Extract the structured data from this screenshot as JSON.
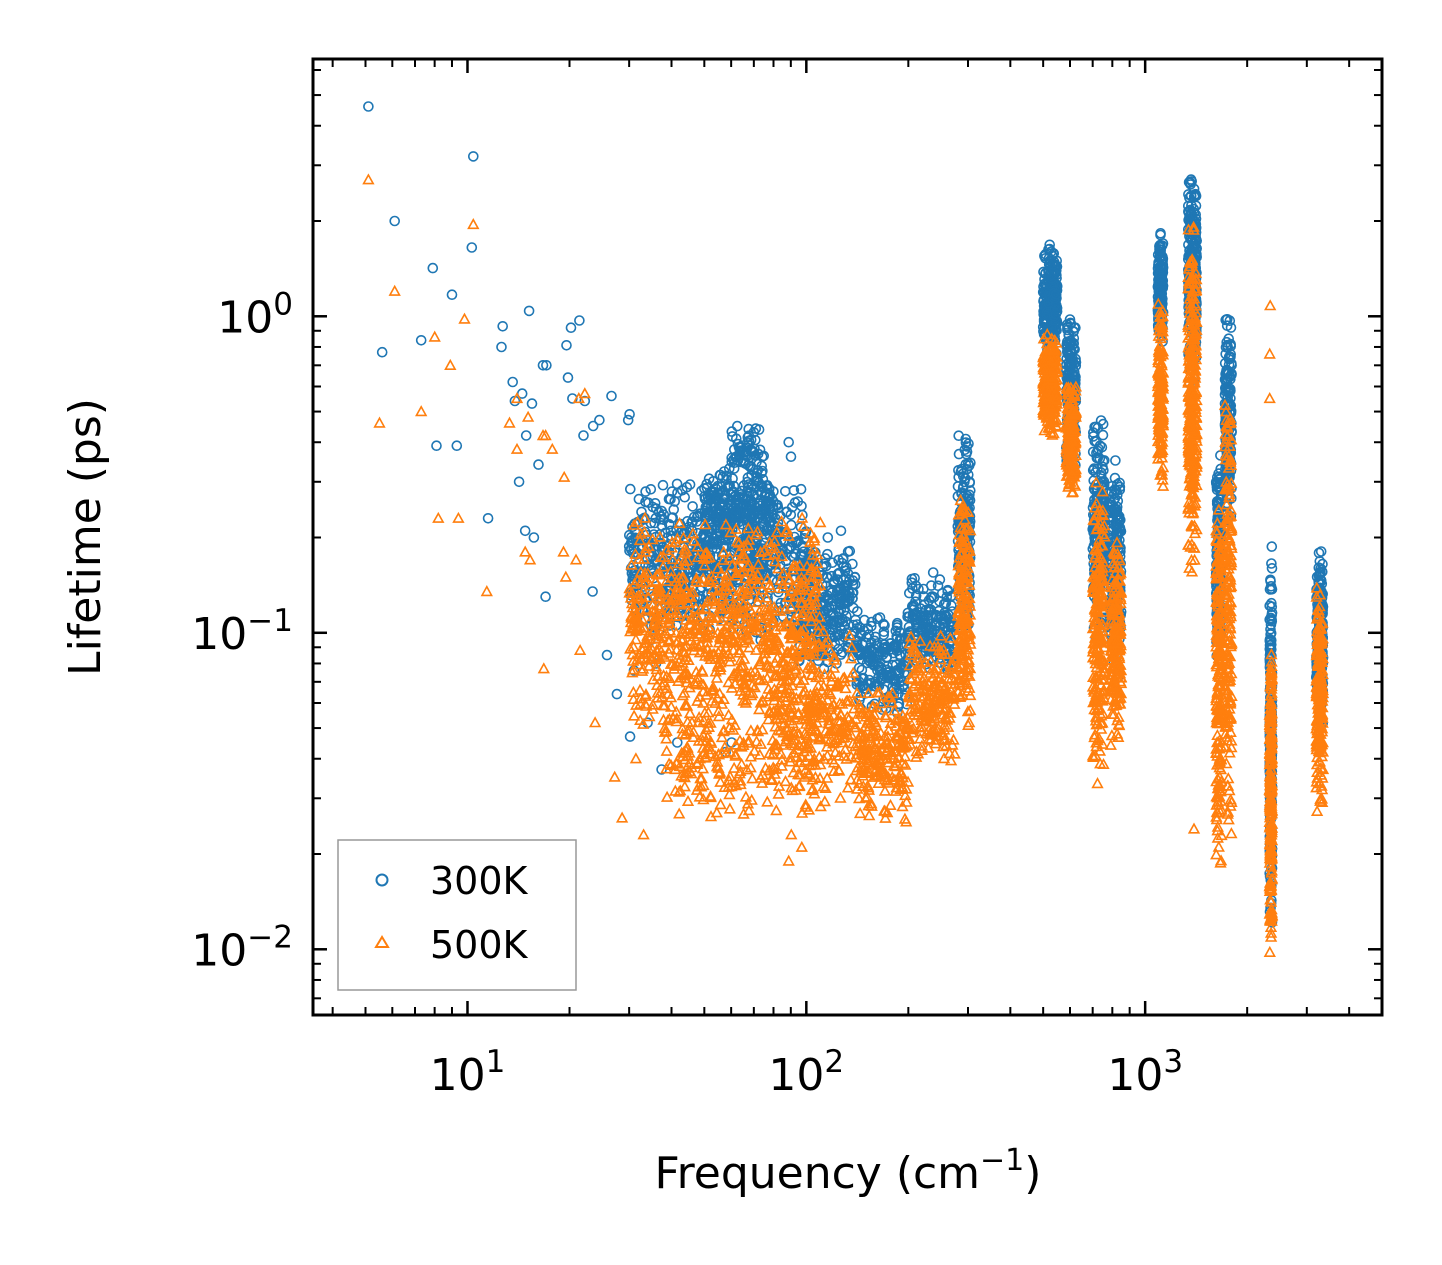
{
  "chart_data": {
    "type": "scatter",
    "title": "",
    "xlabel": "Frequency (cm",
    "xlabel_sup": "−1",
    "xlabel_close": ")",
    "ylabel": "Lifetime (ps)",
    "xscale": "log",
    "yscale": "log",
    "xlim": [
      3.5,
      5000
    ],
    "ylim": [
      0.0062,
      6.5
    ],
    "x_ticks": [
      {
        "base": "10",
        "exp": "1",
        "value": 10
      },
      {
        "base": "10",
        "exp": "2",
        "value": 100
      },
      {
        "base": "10",
        "exp": "3",
        "value": 1000
      }
    ],
    "y_ticks": [
      {
        "base": "10",
        "exp": "0",
        "value": 1
      },
      {
        "base": "10",
        "exp": "−1",
        "value": 0.1
      },
      {
        "base": "10",
        "exp": "−2",
        "value": 0.01
      }
    ],
    "legend_position": "lower-left",
    "series": [
      {
        "name": "300K",
        "marker": "circle",
        "color": "#1f77b4",
        "points": [
          [
            5.1,
            4.6
          ],
          [
            10.4,
            3.2
          ],
          [
            6.1,
            2.0
          ],
          [
            10.3,
            1.65
          ],
          [
            7.9,
            1.42
          ],
          [
            9.0,
            1.17
          ],
          [
            15.2,
            1.04
          ],
          [
            21.4,
            0.97
          ],
          [
            20.2,
            0.92
          ],
          [
            12.7,
            0.93
          ],
          [
            5.6,
            0.77
          ],
          [
            7.3,
            0.84
          ],
          [
            12.6,
            0.8
          ],
          [
            19.6,
            0.81
          ],
          [
            16.7,
            0.7
          ],
          [
            17.1,
            0.7
          ],
          [
            19.8,
            0.64
          ],
          [
            13.6,
            0.62
          ],
          [
            14.5,
            0.57
          ],
          [
            13.8,
            0.54
          ],
          [
            15.5,
            0.53
          ],
          [
            20.4,
            0.55
          ],
          [
            22.2,
            0.54
          ],
          [
            26.6,
            0.56
          ],
          [
            29.8,
            0.47
          ],
          [
            30.1,
            0.49
          ],
          [
            24.5,
            0.47
          ],
          [
            23.5,
            0.45
          ],
          [
            22.0,
            0.42
          ],
          [
            14.9,
            0.42
          ],
          [
            8.1,
            0.39
          ],
          [
            9.3,
            0.39
          ],
          [
            16.2,
            0.34
          ],
          [
            14.2,
            0.3
          ],
          [
            11.5,
            0.23
          ],
          [
            14.8,
            0.21
          ],
          [
            15.7,
            0.2
          ],
          [
            17.0,
            0.13
          ],
          [
            25.8,
            0.085
          ],
          [
            23.4,
            0.135
          ],
          [
            27.6,
            0.064
          ],
          [
            36.0,
            0.08
          ],
          [
            31.0,
            0.076
          ],
          [
            34.0,
            0.052
          ],
          [
            30.2,
            0.047
          ],
          [
            37.4,
            0.037
          ],
          [
            41.6,
            0.045
          ],
          [
            60.2,
            0.045
          ],
          [
            57.8,
            0.042
          ],
          [
            88.7,
            0.4
          ],
          [
            90.1,
            0.36
          ],
          [
            94.4,
            0.26
          ],
          [
            67.6,
            0.44
          ],
          [
            70.0,
            0.43
          ],
          [
            74.1,
            0.36
          ],
          [
            86.7,
            0.28
          ],
          [
            115.7,
            0.2
          ],
          [
            126.6,
            0.21
          ],
          [
            139.2,
            0.15
          ],
          [
            236.8,
            0.155
          ],
          [
            280.5,
            0.195
          ],
          [
            280.3,
            0.29
          ]
        ],
        "clusters": [
          {
            "x": [
              30,
              100
            ],
            "y": [
              0.09,
              0.31
            ],
            "n": 700
          },
          {
            "x": [
              50,
              80
            ],
            "y": [
              0.18,
              0.34
            ],
            "n": 260
          },
          {
            "x": [
              60,
              75
            ],
            "y": [
              0.3,
              0.46
            ],
            "n": 60
          },
          {
            "x": [
              95,
              140
            ],
            "y": [
              0.075,
              0.19
            ],
            "n": 280
          },
          {
            "x": [
              140,
              200
            ],
            "y": [
              0.055,
              0.12
            ],
            "n": 200
          },
          {
            "x": [
              200,
              270
            ],
            "y": [
              0.07,
              0.15
            ],
            "n": 200
          },
          {
            "x": [
              280,
              305
            ],
            "y": [
              0.09,
              0.44
            ],
            "n": 200
          },
          {
            "x": [
              500,
              550
            ],
            "y": [
              0.75,
              1.7
            ],
            "n": 240
          },
          {
            "x": [
              585,
              625
            ],
            "y": [
              0.33,
              1.02
            ],
            "n": 200
          },
          {
            "x": [
              700,
              760
            ],
            "y": [
              0.09,
              0.5
            ],
            "n": 200
          },
          {
            "x": [
              790,
              850
            ],
            "y": [
              0.07,
              0.37
            ],
            "n": 180
          },
          {
            "x": [
              1090,
              1130
            ],
            "y": [
              0.8,
              1.9
            ],
            "n": 160
          },
          {
            "x": [
              1340,
              1420
            ],
            "y": [
              0.6,
              2.9
            ],
            "n": 300
          },
          {
            "x": [
              1620,
              1680
            ],
            "y": [
              0.08,
              0.37
            ],
            "n": 160
          },
          {
            "x": [
              1720,
              1800
            ],
            "y": [
              0.2,
              1.05
            ],
            "n": 180
          },
          {
            "x": [
              2330,
              2370
            ],
            "y": [
              0.01,
              0.21
            ],
            "n": 220
          },
          {
            "x": [
              3200,
              3350
            ],
            "y": [
              0.05,
              0.19
            ],
            "n": 200
          }
        ]
      },
      {
        "name": "500K",
        "marker": "triangle",
        "color": "#ff7f0e",
        "points": [
          [
            5.1,
            2.7
          ],
          [
            10.4,
            1.95
          ],
          [
            6.1,
            1.2
          ],
          [
            9.8,
            0.98
          ],
          [
            8.0,
            0.86
          ],
          [
            8.9,
            0.7
          ],
          [
            5.5,
            0.46
          ],
          [
            7.3,
            0.5
          ],
          [
            11.4,
            0.135
          ],
          [
            8.2,
            0.23
          ],
          [
            9.4,
            0.23
          ],
          [
            14.0,
            0.55
          ],
          [
            15.1,
            0.48
          ],
          [
            14.0,
            0.38
          ],
          [
            13.3,
            0.46
          ],
          [
            16.7,
            0.42
          ],
          [
            17.0,
            0.42
          ],
          [
            17.8,
            0.38
          ],
          [
            19.3,
            0.31
          ],
          [
            22.2,
            0.57
          ],
          [
            21.3,
            0.55
          ],
          [
            14.8,
            0.18
          ],
          [
            15.3,
            0.17
          ],
          [
            16.8,
            0.077
          ],
          [
            19.2,
            0.18
          ],
          [
            20.9,
            0.17
          ],
          [
            21.5,
            0.088
          ],
          [
            23.8,
            0.052
          ],
          [
            19.5,
            0.15
          ],
          [
            27.2,
            0.035
          ],
          [
            28.6,
            0.026
          ],
          [
            33.1,
            0.023
          ],
          [
            31.4,
            0.04
          ],
          [
            88.7,
            0.019
          ],
          [
            90.3,
            0.023
          ],
          [
            97.0,
            0.021
          ],
          [
            300.4,
            0.051
          ],
          [
            1394,
            0.024
          ],
          [
            2331,
            0.55
          ],
          [
            2331,
            0.76
          ],
          [
            2339,
            1.08
          ]
        ],
        "clusters": [
          {
            "x": [
              30,
              110
            ],
            "y": [
              0.045,
              0.24
            ],
            "n": 850
          },
          {
            "x": [
              38,
              80
            ],
            "y": [
              0.026,
              0.06
            ],
            "n": 160
          },
          {
            "x": [
              80,
              140
            ],
            "y": [
              0.026,
              0.11
            ],
            "n": 300
          },
          {
            "x": [
              140,
              200
            ],
            "y": [
              0.024,
              0.07
            ],
            "n": 220
          },
          {
            "x": [
              200,
              275
            ],
            "y": [
              0.038,
              0.1
            ],
            "n": 220
          },
          {
            "x": [
              280,
              305
            ],
            "y": [
              0.05,
              0.28
            ],
            "n": 180
          },
          {
            "x": [
              500,
              550
            ],
            "y": [
              0.4,
              0.9
            ],
            "n": 220
          },
          {
            "x": [
              585,
              625
            ],
            "y": [
              0.27,
              0.65
            ],
            "n": 180
          },
          {
            "x": [
              700,
              760
            ],
            "y": [
              0.03,
              0.32
            ],
            "n": 200
          },
          {
            "x": [
              790,
              850
            ],
            "y": [
              0.04,
              0.2
            ],
            "n": 180
          },
          {
            "x": [
              1090,
              1130
            ],
            "y": [
              0.28,
              1.15
            ],
            "n": 160
          },
          {
            "x": [
              1340,
              1420
            ],
            "y": [
              0.14,
              2.0
            ],
            "n": 300
          },
          {
            "x": [
              1620,
              1680
            ],
            "y": [
              0.017,
              0.28
            ],
            "n": 200
          },
          {
            "x": [
              1720,
              1800
            ],
            "y": [
              0.02,
              0.9
            ],
            "n": 180
          },
          {
            "x": [
              2330,
              2370
            ],
            "y": [
              0.009,
              0.11
            ],
            "n": 220
          },
          {
            "x": [
              3200,
              3350
            ],
            "y": [
              0.026,
              0.15
            ],
            "n": 200
          }
        ]
      }
    ]
  }
}
